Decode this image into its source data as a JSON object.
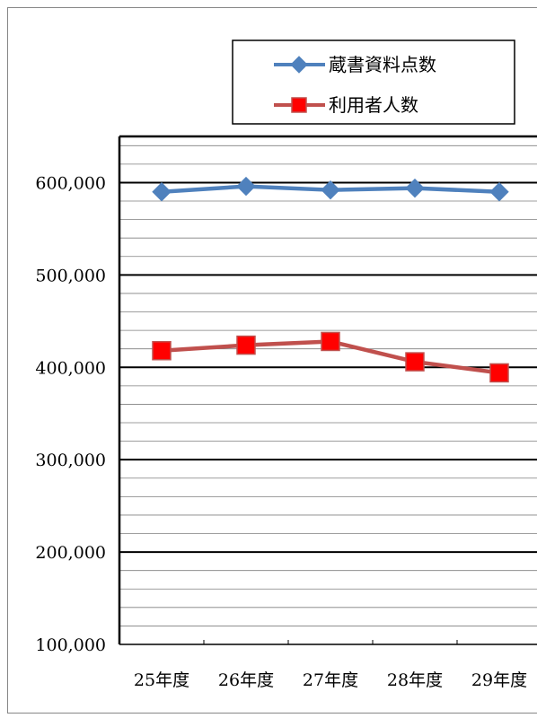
{
  "chart_data": {
    "type": "line",
    "categories": [
      "25年度",
      "26年度",
      "27年度",
      "28年度",
      "29年度"
    ],
    "series": [
      {
        "name": "蔵書資料点数",
        "values": [
          590000,
          596000,
          592000,
          594000,
          590000
        ],
        "color": "#4F81BD",
        "marker": "diamond"
      },
      {
        "name": "利用者人数",
        "values": [
          418000,
          424000,
          428000,
          406000,
          394000
        ],
        "color": "#C0504D",
        "marker_fill": "#FF0000",
        "marker": "square"
      }
    ],
    "y_ticks": [
      "100,000",
      "200,000",
      "300,000",
      "400,000",
      "500,000",
      "600,000"
    ],
    "ylim": [
      100000,
      650000
    ],
    "y_major_step": 100000,
    "y_minor_step": 20000,
    "grid": true,
    "legend_position": "top-right"
  }
}
